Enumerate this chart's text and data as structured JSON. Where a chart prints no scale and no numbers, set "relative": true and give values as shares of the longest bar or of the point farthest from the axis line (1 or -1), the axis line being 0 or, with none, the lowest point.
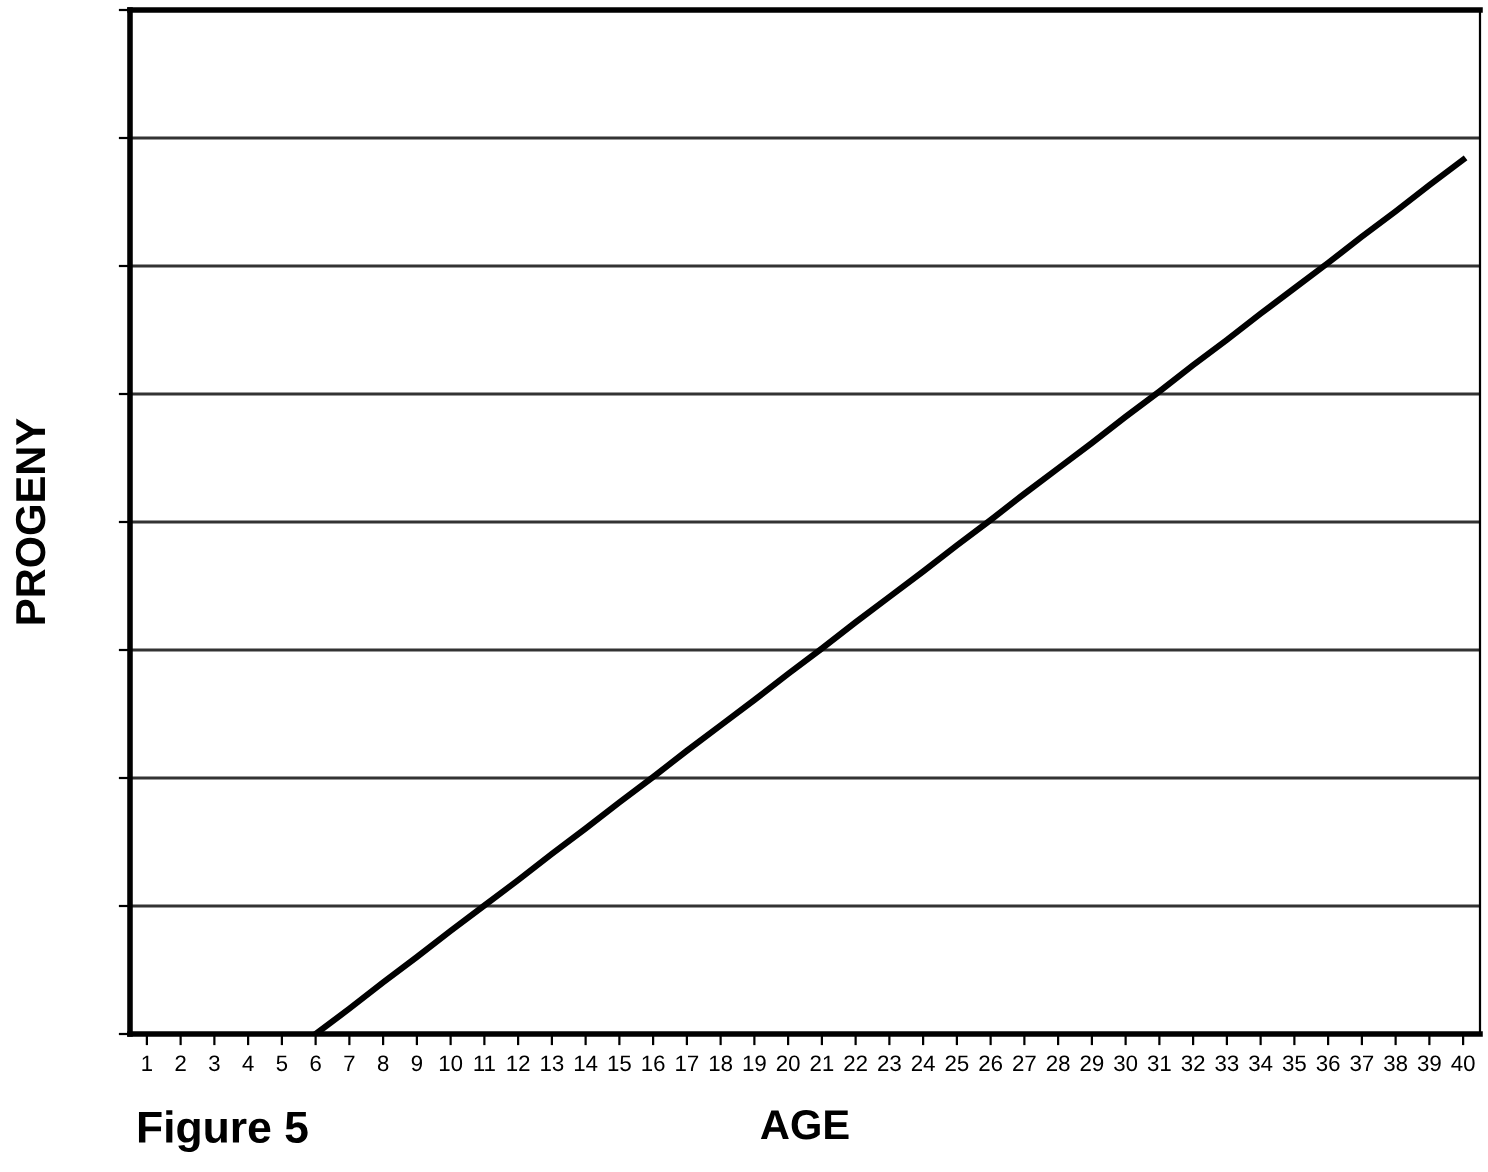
{
  "chart_data": {
    "type": "line",
    "xlabel": "AGE",
    "ylabel": "PROGENY",
    "annotations": [
      "Figure 5"
    ],
    "categories": [
      "1",
      "2",
      "3",
      "4",
      "5",
      "6",
      "7",
      "8",
      "9",
      "10",
      "11",
      "12",
      "13",
      "14",
      "15",
      "16",
      "17",
      "18",
      "19",
      "20",
      "21",
      "22",
      "23",
      "24",
      "25",
      "26",
      "27",
      "28",
      "29",
      "30",
      "31",
      "32",
      "33",
      "34",
      "35",
      "36",
      "37",
      "38",
      "39",
      "40"
    ],
    "series": [
      {
        "color": "#000000",
        "values": [
          null,
          null,
          null,
          null,
          null,
          0,
          0.029,
          0.059,
          0.088,
          0.118,
          0.147,
          0.176,
          0.206,
          0.235,
          0.265,
          0.294,
          0.324,
          0.353,
          0.382,
          0.412,
          0.441,
          0.471,
          0.5,
          0.529,
          0.559,
          0.588,
          0.618,
          0.647,
          0.676,
          0.706,
          0.735,
          0.765,
          0.794,
          0.824,
          0.853,
          0.882,
          0.912,
          0.941,
          0.971,
          1
        ]
      }
    ],
    "relative": true,
    "grid": "y",
    "legend": false,
    "marker": "none",
    "line_style": "solid"
  }
}
